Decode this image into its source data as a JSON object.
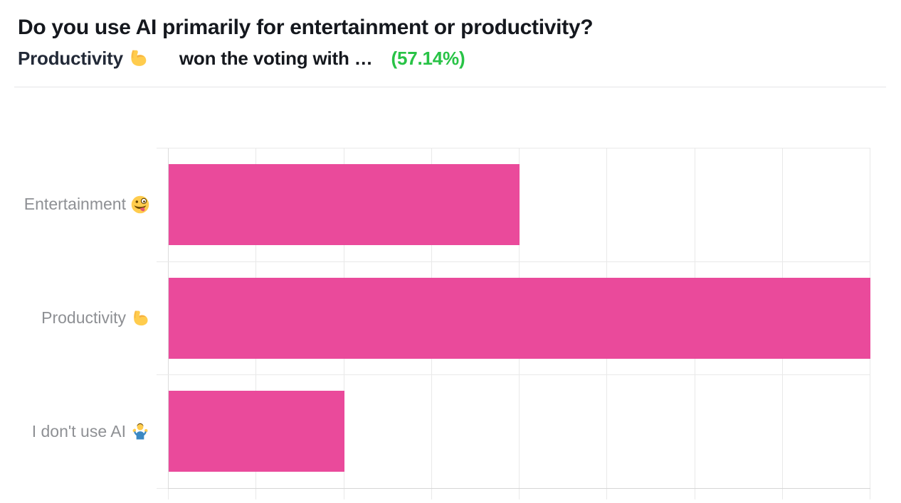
{
  "header": {
    "title": "Do you use AI primarily for entertainment or productivity?",
    "subtitle": {
      "winner_label": "Productivity",
      "winner_emoji": "💪",
      "winner_emoji_name": "flexed-biceps",
      "middle_text": "won the voting with …",
      "percent_text": "(57.14%)",
      "percent_color": "#28c346"
    }
  },
  "chart_data": {
    "type": "bar",
    "orientation": "horizontal",
    "title": "Do you use AI primarily for entertainment or productivity?",
    "categories": [
      "Entertainment 🤪",
      "Productivity 💪",
      "I don't use AI 🤷‍♂️"
    ],
    "category_texts": [
      "Entertainment",
      "Productivity",
      "I don't use AI"
    ],
    "category_emoji": [
      "🤪",
      "💪",
      "🤷‍♂️"
    ],
    "category_emoji_names": [
      "zany-face",
      "flexed-biceps",
      "man-shrugging"
    ],
    "values": [
      2,
      4,
      1
    ],
    "xlim": [
      0,
      4
    ],
    "grid_step": 0.5,
    "bar_color": "#ea4a9b",
    "grid": true,
    "legend": false,
    "xlabel": "",
    "ylabel": ""
  }
}
